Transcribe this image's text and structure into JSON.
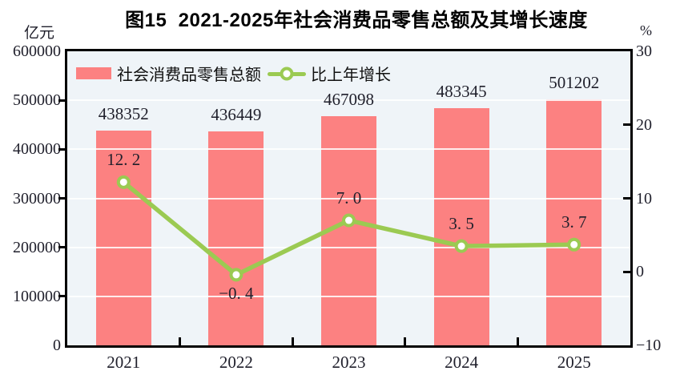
{
  "title": "图15  2021-2025年社会消费品零售总额及其增长速度",
  "left_axis_unit": "亿元",
  "right_axis_unit": "%",
  "legend": {
    "bar_label": "社会消费品零售总额",
    "line_label": "比上年增长"
  },
  "colors": {
    "bar": "#FC8181",
    "line": "#9BCA52",
    "plot_background": "#EFF4F8",
    "gridline": "#FFFFFF",
    "axis": "#000000",
    "text": "#1F1F2B"
  },
  "chart_data": {
    "type": "bar+line",
    "categories": [
      "2021",
      "2022",
      "2023",
      "2024",
      "2025"
    ],
    "series": [
      {
        "name": "社会消费品零售总额",
        "type": "bar",
        "axis": "left",
        "unit": "亿元",
        "values": [
          438352,
          436449,
          467098,
          483345,
          501202
        ],
        "labels": [
          "438352",
          "436449",
          "467098",
          "483345",
          "501202"
        ]
      },
      {
        "name": "比上年增长",
        "type": "line",
        "axis": "right",
        "unit": "%",
        "values": [
          12.2,
          -0.4,
          7.0,
          3.5,
          3.7
        ],
        "labels": [
          "12. 2",
          "−0. 4",
          "7. 0",
          "3. 5",
          "3. 7"
        ]
      }
    ],
    "left_axis": {
      "unit": "亿元",
      "min": 0,
      "max": 600000,
      "step": 100000,
      "tick_labels": [
        "0",
        "100000",
        "200000",
        "300000",
        "400000",
        "500000",
        "600000"
      ]
    },
    "right_axis": {
      "unit": "%",
      "min": -10,
      "max": 30,
      "step": 10,
      "tick_labels": [
        "−10",
        "0",
        "10",
        "20",
        "30"
      ]
    },
    "grid": true,
    "legend_position": "top-left-inside"
  }
}
